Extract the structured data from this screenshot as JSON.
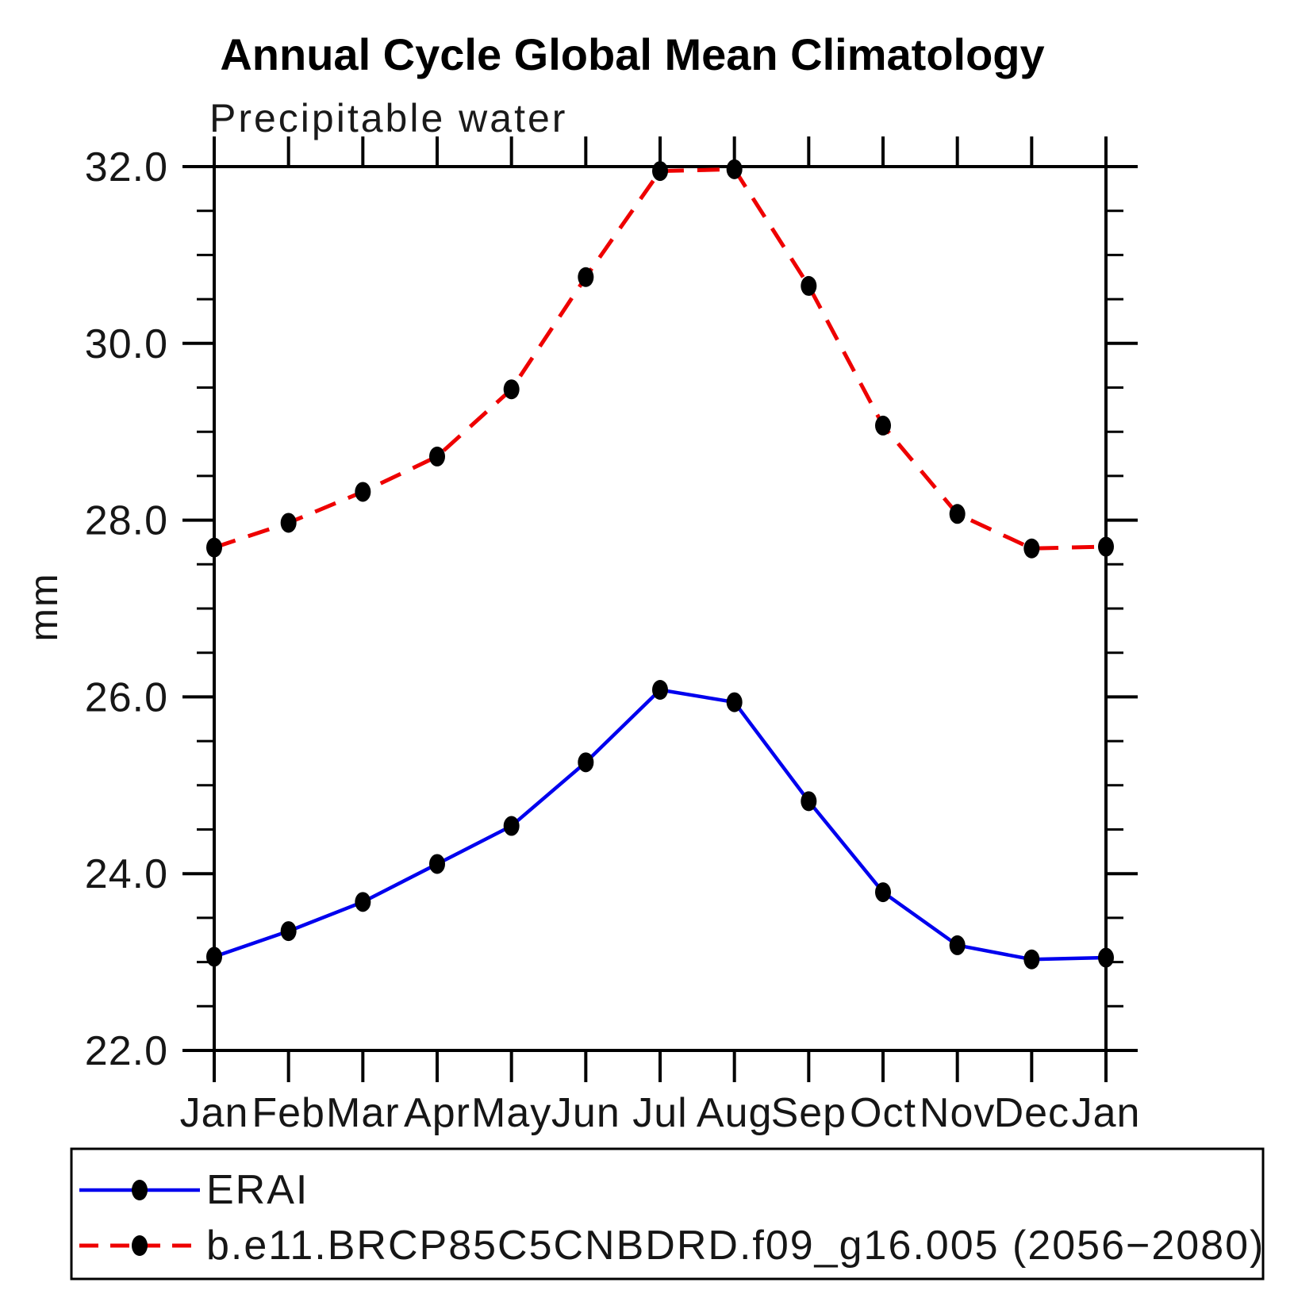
{
  "title": "Annual Cycle Global Mean Climatology",
  "subtitle": "Precipitable water",
  "y_axis": {
    "label": "mm",
    "tick_labels": [
      "32.0",
      "30.0",
      "28.0",
      "26.0",
      "24.0",
      "22.0"
    ]
  },
  "x_axis": {
    "tick_labels": [
      "Jan",
      "Feb",
      "Mar",
      "Apr",
      "May",
      "Jun",
      "Jul",
      "Aug",
      "Sep",
      "Oct",
      "Nov",
      "Dec",
      "Jan"
    ]
  },
  "colors": {
    "axis": "#000000",
    "marker": "#000000",
    "erai": "#0000ee",
    "model": "#ee0000",
    "legend_border": "#000000"
  },
  "chart_data": {
    "type": "line",
    "title": "Annual Cycle Global Mean Climatology",
    "subtitle": "Precipitable water",
    "xlabel": "",
    "ylabel": "mm",
    "ylim": [
      22.0,
      32.0
    ],
    "y_major_step": 2.0,
    "y_minor_step": 0.5,
    "grid": false,
    "legend_position": "bottom",
    "categories": [
      "Jan",
      "Feb",
      "Mar",
      "Apr",
      "May",
      "Jun",
      "Jul",
      "Aug",
      "Sep",
      "Oct",
      "Nov",
      "Dec",
      "Jan"
    ],
    "series": [
      {
        "name": "ERAI",
        "color": "#0000ee",
        "line": "solid",
        "marker": "circle",
        "marker_color": "#000000",
        "values": [
          23.06,
          23.35,
          23.68,
          24.11,
          24.54,
          25.26,
          26.08,
          25.94,
          24.82,
          23.79,
          23.19,
          23.03,
          23.05
        ]
      },
      {
        "name": "b.e11.BRCP85C5CNBDRD.f09_g16.005 (2056−2080)",
        "color": "#ee0000",
        "line": "dashed",
        "marker": "circle",
        "marker_color": "#000000",
        "values": [
          27.69,
          27.97,
          28.32,
          28.72,
          29.48,
          30.75,
          31.95,
          31.97,
          30.65,
          29.07,
          28.07,
          27.68,
          27.7
        ]
      }
    ]
  }
}
